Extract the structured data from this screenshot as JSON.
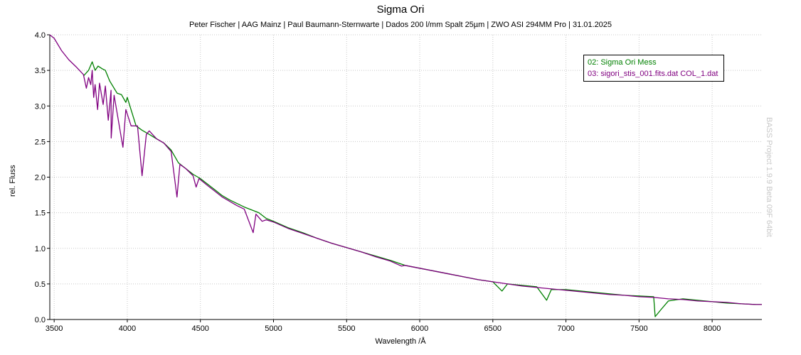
{
  "title": "Sigma Ori",
  "subtitle": "Peter Fischer | AAG Mainz | Paul Baumann-Sternwarte | Dados 200 l/mm Spalt 25µm | ZWO ASI 294MM Pro | 31.01.2025",
  "watermark": "BASS Project 1.9.9 Beta 09F 64bit",
  "chart_data": {
    "type": "line",
    "title": "Sigma Ori",
    "xlabel": "Wavelength /Å",
    "ylabel": "rel. Fluss",
    "xlim": [
      3470,
      8340
    ],
    "ylim": [
      0.0,
      4.0
    ],
    "grid": true,
    "legend_position": "top-right",
    "x_ticks": [
      "3500",
      "4000",
      "4500",
      "5000",
      "5500",
      "6000",
      "6500",
      "7000",
      "7500",
      "8000"
    ],
    "y_ticks": [
      "0.0",
      "0.5",
      "1.0",
      "1.5",
      "2.0",
      "2.5",
      "3.0",
      "3.5",
      "4.0"
    ],
    "series": [
      {
        "name": "02: Sigma Ori Mess",
        "color": "#008000",
        "points": [
          [
            3700,
            3.42
          ],
          [
            3735,
            3.5
          ],
          [
            3760,
            3.62
          ],
          [
            3780,
            3.5
          ],
          [
            3800,
            3.56
          ],
          [
            3830,
            3.52
          ],
          [
            3850,
            3.5
          ],
          [
            3880,
            3.35
          ],
          [
            3930,
            3.18
          ],
          [
            3960,
            3.16
          ],
          [
            3990,
            3.05
          ],
          [
            4000,
            3.12
          ],
          [
            4030,
            2.92
          ],
          [
            4060,
            2.72
          ],
          [
            4100,
            2.66
          ],
          [
            4150,
            2.6
          ],
          [
            4200,
            2.54
          ],
          [
            4250,
            2.48
          ],
          [
            4300,
            2.38
          ],
          [
            4350,
            2.2
          ],
          [
            4400,
            2.12
          ],
          [
            4450,
            2.04
          ],
          [
            4500,
            1.98
          ],
          [
            4550,
            1.9
          ],
          [
            4600,
            1.82
          ],
          [
            4650,
            1.74
          ],
          [
            4700,
            1.68
          ],
          [
            4750,
            1.63
          ],
          [
            4800,
            1.58
          ],
          [
            4850,
            1.54
          ],
          [
            4900,
            1.5
          ],
          [
            4950,
            1.42
          ],
          [
            5000,
            1.38
          ],
          [
            5100,
            1.29
          ],
          [
            5200,
            1.22
          ],
          [
            5300,
            1.14
          ],
          [
            5400,
            1.07
          ],
          [
            5500,
            1.01
          ],
          [
            5600,
            0.95
          ],
          [
            5700,
            0.89
          ],
          [
            5800,
            0.83
          ],
          [
            5900,
            0.76
          ],
          [
            6000,
            0.72
          ],
          [
            6100,
            0.68
          ],
          [
            6200,
            0.64
          ],
          [
            6300,
            0.6
          ],
          [
            6400,
            0.56
          ],
          [
            6500,
            0.53
          ],
          [
            6563,
            0.4
          ],
          [
            6600,
            0.5
          ],
          [
            6700,
            0.48
          ],
          [
            6800,
            0.46
          ],
          [
            6868,
            0.27
          ],
          [
            6900,
            0.42
          ],
          [
            7000,
            0.42
          ],
          [
            7100,
            0.4
          ],
          [
            7200,
            0.38
          ],
          [
            7300,
            0.36
          ],
          [
            7400,
            0.34
          ],
          [
            7500,
            0.33
          ],
          [
            7600,
            0.32
          ],
          [
            7610,
            0.04
          ],
          [
            7650,
            0.14
          ],
          [
            7700,
            0.26
          ],
          [
            7800,
            0.29
          ],
          [
            7900,
            0.27
          ],
          [
            8000,
            0.25
          ],
          [
            8100,
            0.23
          ],
          [
            8200,
            0.22
          ],
          [
            8300,
            0.21
          ],
          [
            8340,
            0.21
          ]
        ]
      },
      {
        "name": "03: sigori_stis_001.fits.dat COL_1.dat",
        "color": "#800080",
        "points": [
          [
            3470,
            4.05
          ],
          [
            3500,
            3.95
          ],
          [
            3550,
            3.78
          ],
          [
            3600,
            3.65
          ],
          [
            3650,
            3.55
          ],
          [
            3700,
            3.44
          ],
          [
            3720,
            3.25
          ],
          [
            3735,
            3.4
          ],
          [
            3750,
            3.3
          ],
          [
            3760,
            3.5
          ],
          [
            3770,
            3.12
          ],
          [
            3780,
            3.3
          ],
          [
            3797,
            2.95
          ],
          [
            3810,
            3.32
          ],
          [
            3835,
            3.02
          ],
          [
            3850,
            3.28
          ],
          [
            3870,
            2.8
          ],
          [
            3889,
            3.22
          ],
          [
            3890,
            2.55
          ],
          [
            3910,
            3.15
          ],
          [
            3970,
            2.42
          ],
          [
            3990,
            2.95
          ],
          [
            4026,
            2.72
          ],
          [
            4070,
            2.72
          ],
          [
            4101,
            2.02
          ],
          [
            4130,
            2.6
          ],
          [
            4150,
            2.65
          ],
          [
            4200,
            2.54
          ],
          [
            4250,
            2.48
          ],
          [
            4300,
            2.36
          ],
          [
            4340,
            1.72
          ],
          [
            4360,
            2.18
          ],
          [
            4400,
            2.12
          ],
          [
            4450,
            2.02
          ],
          [
            4471,
            1.86
          ],
          [
            4490,
            1.98
          ],
          [
            4550,
            1.88
          ],
          [
            4600,
            1.8
          ],
          [
            4650,
            1.72
          ],
          [
            4700,
            1.66
          ],
          [
            4750,
            1.6
          ],
          [
            4800,
            1.55
          ],
          [
            4861,
            1.22
          ],
          [
            4880,
            1.48
          ],
          [
            4922,
            1.38
          ],
          [
            4950,
            1.4
          ],
          [
            5000,
            1.37
          ],
          [
            5100,
            1.28
          ],
          [
            5200,
            1.21
          ],
          [
            5300,
            1.14
          ],
          [
            5400,
            1.07
          ],
          [
            5500,
            1.01
          ],
          [
            5600,
            0.95
          ],
          [
            5700,
            0.88
          ],
          [
            5800,
            0.82
          ],
          [
            5876,
            0.75
          ],
          [
            5900,
            0.76
          ],
          [
            6000,
            0.72
          ],
          [
            6100,
            0.68
          ],
          [
            6200,
            0.64
          ],
          [
            6300,
            0.6
          ],
          [
            6400,
            0.56
          ],
          [
            6500,
            0.53
          ],
          [
            6600,
            0.5
          ],
          [
            6700,
            0.47
          ],
          [
            6800,
            0.45
          ],
          [
            6900,
            0.43
          ],
          [
            7000,
            0.41
          ],
          [
            7100,
            0.39
          ],
          [
            7200,
            0.37
          ],
          [
            7300,
            0.35
          ],
          [
            7400,
            0.34
          ],
          [
            7500,
            0.32
          ],
          [
            7600,
            0.31
          ],
          [
            7700,
            0.29
          ],
          [
            7800,
            0.28
          ],
          [
            7900,
            0.26
          ],
          [
            8000,
            0.25
          ],
          [
            8100,
            0.24
          ],
          [
            8200,
            0.22
          ],
          [
            8300,
            0.21
          ],
          [
            8340,
            0.21
          ]
        ]
      }
    ]
  }
}
